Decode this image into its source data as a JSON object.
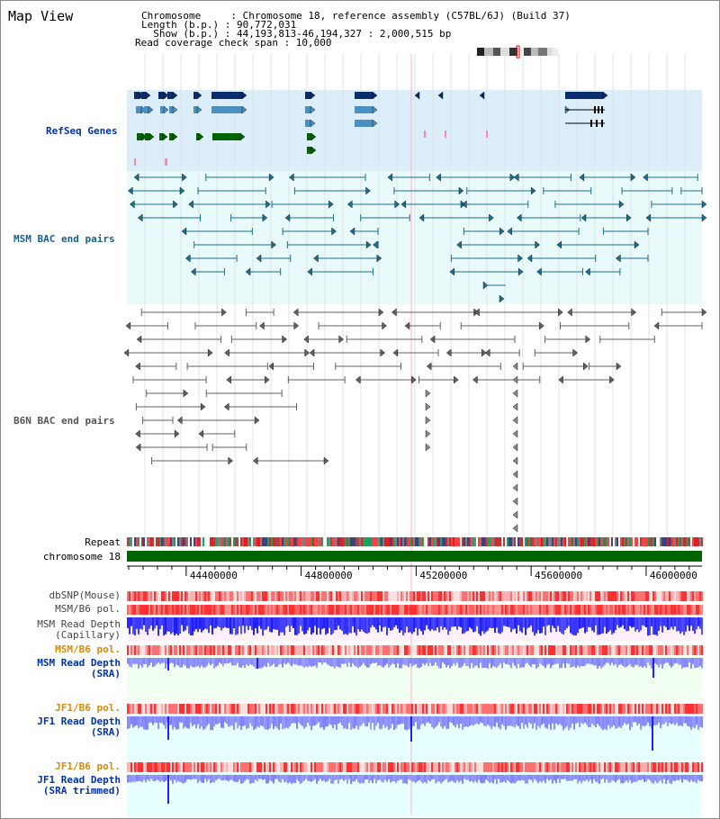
{
  "title": "Map View",
  "info": {
    "chromosome_label": "Chromosome     : Chromosome 18, reference assembly (C57BL/6J) (Build 37)",
    "length_label": "Length (b.p.) : 90,772,031",
    "show_label": "  Show (b.p.) : 44,193,813-46,194,327 : 2,000,515 bp",
    "coverage_label": "Read coverage check span : 10,000"
  },
  "tracks": {
    "refseq": "RefSeq Genes",
    "msm_bac": "MSM BAC end pairs",
    "b6n_bac": "B6N BAC end pairs",
    "repeat": "Repeat",
    "chromosome": "chromosome 18",
    "dbsnp": "dbSNP(Mouse)",
    "msm_b6_pol_1": "MSM/B6 pol.",
    "msm_read_depth_cap_1": "MSM Read Depth",
    "msm_read_depth_cap_2": "(Capillary)",
    "msm_b6_pol_2": "MSM/B6 pol.",
    "msm_read_depth_sra_1": "MSM Read Depth",
    "msm_read_depth_sra_2": "(SRA)",
    "jf1_b6_pol_1": "JF1/B6 pol.",
    "jf1_read_depth_sra_1": "JF1 Read Depth",
    "jf1_read_depth_sra_2": "(SRA)",
    "jf1_b6_pol_2": "JF1/B6 pol.",
    "jf1_read_depth_trim_1": "JF1 Read Depth",
    "jf1_read_depth_trim_2": "(SRA trimmed)"
  },
  "axis": {
    "start": 44193813,
    "end": 46194327,
    "ticks": [
      "44400000",
      "44800000",
      "45200000",
      "45600000",
      "46000000"
    ],
    "tick_values": [
      44400000,
      44800000,
      45200000,
      45600000,
      46000000
    ]
  },
  "colors": {
    "refseq_bg": "#dbeefa",
    "msm_bac_bg": "#e8fafa",
    "b6n_bac_bg": "#ffffff",
    "refseq_navy": "#0a2d6e",
    "refseq_steel": "#4a90c0",
    "refseq_green": "#006400",
    "msm_bac": "#1d6e8c",
    "b6n_bac": "#606060",
    "chromosome_bar": "#006400",
    "label_blue": "#0033aa",
    "label_teal": "#1a5e8c",
    "label_orange": "#d88a00",
    "depth_capillary": "#1a1aff",
    "depth_sra": "#8080ff",
    "pol_red": "#ff4040"
  }
}
